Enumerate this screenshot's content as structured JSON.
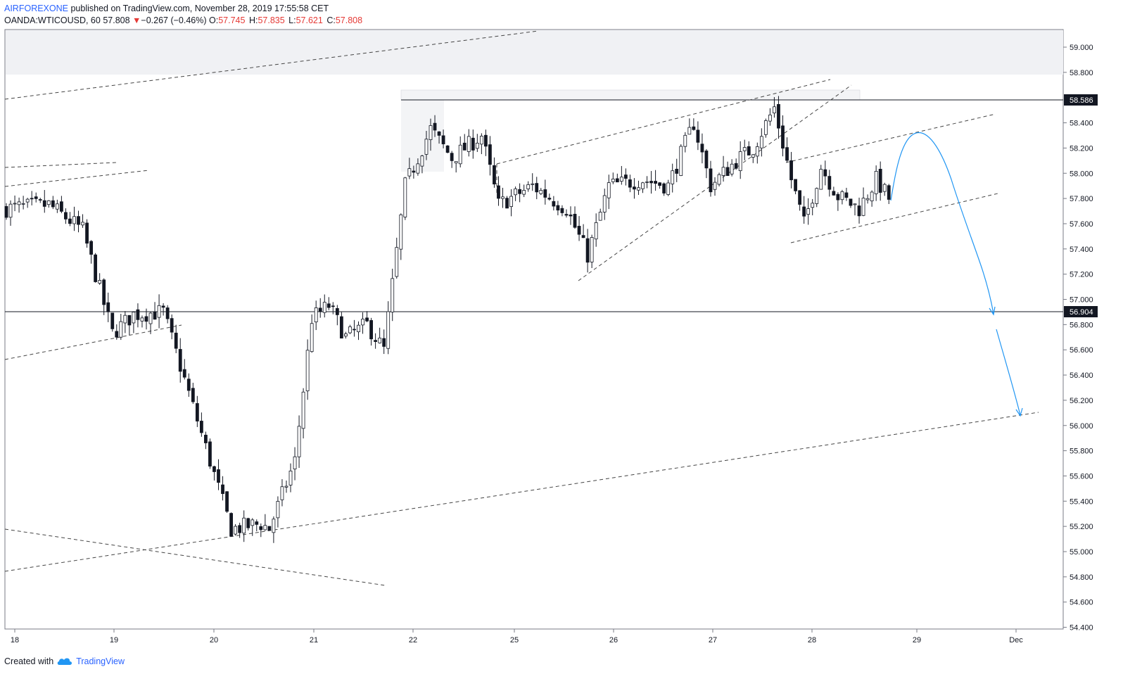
{
  "header": {
    "author": "AIRFOREXONE",
    "published_text": "published on TradingView.com, November 28, 2019 17:55:58 CET",
    "symbol": "OANDA:WTICOUSD, 60",
    "last": "57.808",
    "change_arrow": "▼",
    "change": "−0.267 (−0.46%)",
    "o_label": "O:",
    "o_value": "57.745",
    "h_label": "H:",
    "h_value": "57.835",
    "l_label": "L:",
    "l_value": "57.621",
    "c_label": "C:",
    "c_value": "57.808"
  },
  "footer": {
    "created_with": "Created with",
    "brand": "TradingView"
  },
  "colors": {
    "down_candle": "#131722",
    "up_candle": "#ffffff",
    "projection": "#2196f3",
    "accent_red": "#e53935",
    "brand_blue": "#2962ff"
  },
  "chart_data": {
    "type": "candlestick",
    "symbol": "OANDA:WTICOUSD",
    "timeframe": "60",
    "y_range": [
      54.4,
      59.2
    ],
    "y_ticks": [
      "59.000",
      "58.800",
      "58.400",
      "58.200",
      "58.000",
      "57.800",
      "57.600",
      "57.400",
      "57.200",
      "57.000",
      "56.800",
      "56.600",
      "56.400",
      "56.200",
      "56.000",
      "55.800",
      "55.600",
      "55.400",
      "55.200",
      "55.000",
      "54.800",
      "54.600",
      "54.400"
    ],
    "x_ticks": [
      "18",
      "19",
      "20",
      "21",
      "22",
      "25",
      "26",
      "27",
      "28",
      "29",
      "Dec"
    ],
    "price_labels": [
      "58.586",
      "56.904"
    ],
    "horizontal_levels": [
      58.586,
      56.904
    ],
    "anchors": [
      {
        "i": 0,
        "p": 57.72
      },
      {
        "i": 10,
        "p": 57.75
      },
      {
        "i": 18,
        "p": 57.55
      },
      {
        "i": 25,
        "p": 56.73
      },
      {
        "i": 30,
        "p": 56.88
      },
      {
        "i": 37,
        "p": 56.9
      },
      {
        "i": 44,
        "p": 56.15
      },
      {
        "i": 53,
        "p": 55.18
      },
      {
        "i": 60,
        "p": 55.22
      },
      {
        "i": 62,
        "p": 55.18
      },
      {
        "i": 68,
        "p": 55.72
      },
      {
        "i": 72,
        "p": 56.85
      },
      {
        "i": 76,
        "p": 56.95
      },
      {
        "i": 80,
        "p": 56.7
      },
      {
        "i": 85,
        "p": 56.8
      },
      {
        "i": 89,
        "p": 56.6
      },
      {
        "i": 94,
        "p": 57.9
      },
      {
        "i": 100,
        "p": 58.35
      },
      {
        "i": 105,
        "p": 58.12
      },
      {
        "i": 112,
        "p": 58.3
      },
      {
        "i": 116,
        "p": 57.75
      },
      {
        "i": 124,
        "p": 57.9
      },
      {
        "i": 132,
        "p": 57.72
      },
      {
        "i": 137,
        "p": 57.35
      },
      {
        "i": 142,
        "p": 57.9
      },
      {
        "i": 150,
        "p": 57.95
      },
      {
        "i": 156,
        "p": 57.9
      },
      {
        "i": 162,
        "p": 58.4
      },
      {
        "i": 166,
        "p": 57.9
      },
      {
        "i": 172,
        "p": 58.1
      },
      {
        "i": 176,
        "p": 58.2
      },
      {
        "i": 181,
        "p": 58.52
      },
      {
        "i": 185,
        "p": 57.95
      },
      {
        "i": 188,
        "p": 57.6
      },
      {
        "i": 192,
        "p": 58.05
      },
      {
        "i": 196,
        "p": 57.82
      },
      {
        "i": 201,
        "p": 57.72
      },
      {
        "i": 205,
        "p": 57.95
      },
      {
        "i": 208,
        "p": 57.8
      }
    ]
  }
}
